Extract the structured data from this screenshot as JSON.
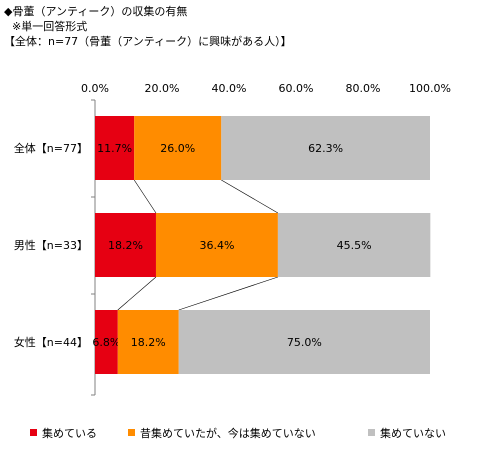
{
  "header": {
    "title": "◆骨董（アンティーク）の収集の有無",
    "subtitle": "※単一回答形式",
    "base": "【全体：n=77（骨董（アンティーク）に興味がある人）】"
  },
  "colors": {
    "collecting": "#e60012",
    "used_to": "#ff8c00",
    "not_collecting": "#c0c0c0"
  },
  "chart_data": {
    "type": "bar",
    "orientation": "horizontal",
    "stacked": true,
    "normalized": true,
    "categories": [
      "全体【n=77】",
      "男性【n=33】",
      "女性【n=44】"
    ],
    "series": [
      {
        "name": "集めている",
        "values": [
          11.7,
          18.2,
          6.8
        ],
        "labels": [
          "11.7%",
          "18.2%",
          "6.8%"
        ]
      },
      {
        "name": "昔集めていたが、今は集めていない",
        "values": [
          26.0,
          36.4,
          18.2
        ],
        "labels": [
          "26.0%",
          "36.4%",
          "18.2%"
        ]
      },
      {
        "name": "集めていない",
        "values": [
          62.3,
          45.5,
          75.0
        ],
        "labels": [
          "62.3%",
          "45.5%",
          "75.0%"
        ]
      }
    ],
    "xlim": [
      0,
      100
    ],
    "xticks": [
      "0.0%",
      "20.0%",
      "40.0%",
      "60.0%",
      "80.0%",
      "100.0%"
    ],
    "connector_lines": true,
    "legend_position": "bottom",
    "grid": false
  }
}
